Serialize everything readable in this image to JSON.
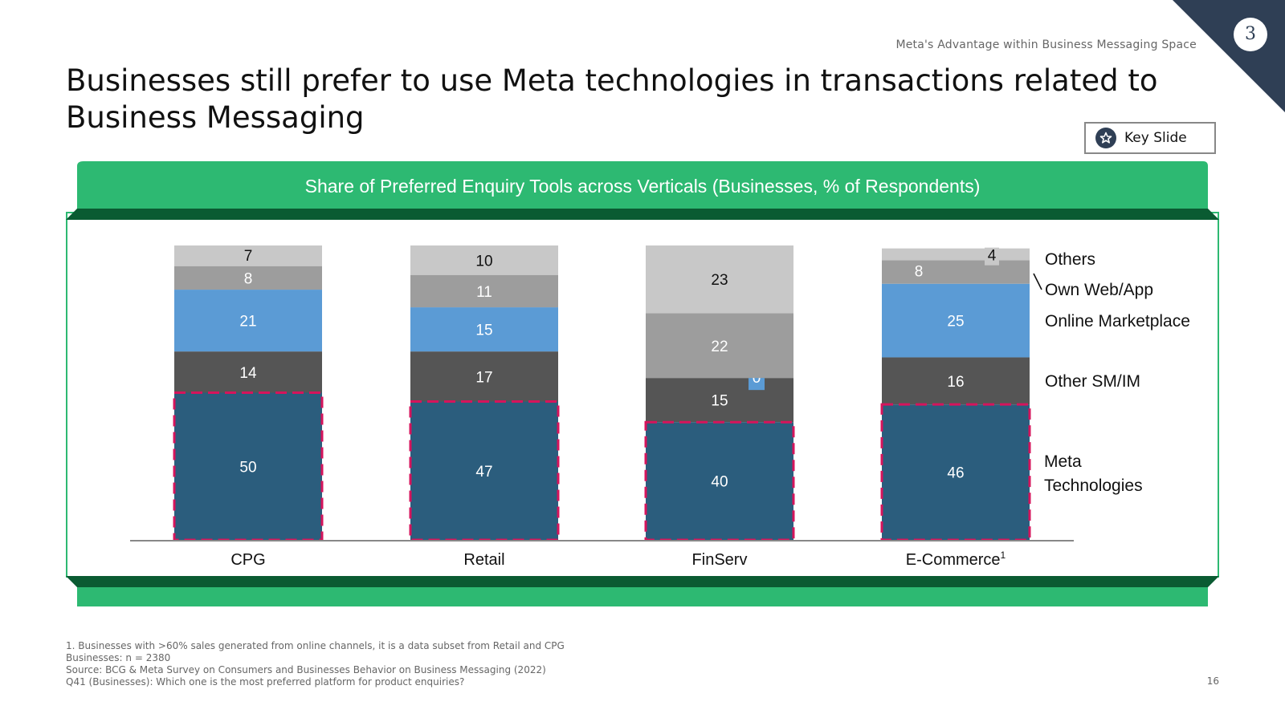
{
  "header": {
    "section_label": "Meta's Advantage within Business Messaging Space",
    "page_number": "3",
    "title": "Businesses still prefer to use Meta technologies in transactions related to Business Messaging",
    "key_slide_label": "Key Slide"
  },
  "colors": {
    "green_banner": "#2db972",
    "dark_green": "#0a5b32",
    "navy_corner": "#2f3f55",
    "meta": "#2b5d7d",
    "other_sm_im": "#555555",
    "online_marketplace": "#5b9bd5",
    "own_web_app": "#9d9d9d",
    "others": "#c8c8c8",
    "highlight_dash": "#d6145c"
  },
  "chart_data": {
    "type": "bar",
    "stacked": true,
    "title": "Share of Preferred Enquiry Tools across Verticals (Businesses, % of Respondents)",
    "categories": [
      "CPG",
      "Retail",
      "FinServ",
      "E-Commerce"
    ],
    "category_superscripts": [
      "",
      "",
      "",
      "1"
    ],
    "series": [
      {
        "name": "Meta Technologies",
        "values": [
          50,
          47,
          40,
          46
        ]
      },
      {
        "name": "Other SM/IM",
        "values": [
          14,
          17,
          15,
          16
        ]
      },
      {
        "name": "Online Marketplace",
        "values": [
          21,
          15,
          0,
          25
        ]
      },
      {
        "name": "Own Web/App",
        "values": [
          8,
          11,
          22,
          8
        ]
      },
      {
        "name": "Others",
        "values": [
          7,
          10,
          23,
          4
        ]
      }
    ],
    "legend_labels": [
      "Others",
      "Own Web/App",
      "Online Marketplace",
      "Other SM/IM",
      "Meta Technologies"
    ],
    "ylim": [
      0,
      100
    ],
    "highlighted_series": "Meta Technologies",
    "legend_position": "right"
  },
  "footer": {
    "notes": [
      "1. Businesses with >60% sales generated from online channels, it is a data subset from Retail and CPG",
      "Businesses: n = 2380",
      "Source: BCG & Meta Survey on Consumers and Businesses Behavior on Business Messaging (2022)",
      "Q41 (Businesses): Which one is the most preferred platform for product enquiries?"
    ],
    "slide_number": "16"
  }
}
